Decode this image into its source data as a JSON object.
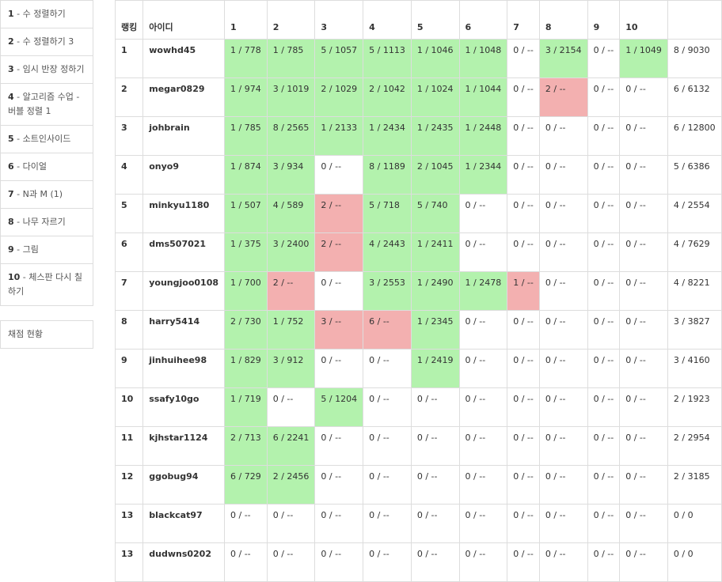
{
  "sidebar": {
    "problems": [
      {
        "num": "1",
        "name": " - 수 정렬하기"
      },
      {
        "num": "2",
        "name": " - 수 정렬하기 3"
      },
      {
        "num": "3",
        "name": " - 임시 반장 정하기"
      },
      {
        "num": "4",
        "name": " - 알고리즘 수업 - 버블 정렬 1"
      },
      {
        "num": "5",
        "name": " - 소트인사이드"
      },
      {
        "num": "6",
        "name": " - 다이얼"
      },
      {
        "num": "7",
        "name": " - N과 M (1)"
      },
      {
        "num": "8",
        "name": " - 나무 자르기"
      },
      {
        "num": "9",
        "name": " - 그림"
      },
      {
        "num": "10",
        "name": " - 체스판 다시 칠하기"
      }
    ],
    "status_label": "채점 현황"
  },
  "table": {
    "header": {
      "rank": "랭킹",
      "id": "아이디",
      "problems": [
        "1",
        "2",
        "3",
        "4",
        "5",
        "6",
        "7",
        "8",
        "9",
        "10"
      ],
      "total": ""
    },
    "rows": [
      {
        "rank": "1",
        "id": "wowhd45",
        "cells": [
          "1 / 778",
          "1 / 785",
          "5 / 1057",
          "5 / 1113",
          "1 / 1046",
          "1 / 1048",
          "0 / --",
          "3 / 2154",
          "0 / --",
          "1 / 1049"
        ],
        "status": [
          "ok",
          "ok",
          "ok",
          "ok",
          "ok",
          "ok",
          "",
          "ok",
          "",
          "ok"
        ],
        "total": "8 / 9030"
      },
      {
        "rank": "2",
        "id": "megar0829",
        "cells": [
          "1 / 974",
          "3 / 1019",
          "2 / 1029",
          "2 / 1042",
          "1 / 1024",
          "1 / 1044",
          "0 / --",
          "2 / --",
          "0 / --",
          "0 / --"
        ],
        "status": [
          "ok",
          "ok",
          "ok",
          "ok",
          "ok",
          "ok",
          "",
          "fail",
          "",
          ""
        ],
        "total": "6 / 6132"
      },
      {
        "rank": "3",
        "id": "johbrain",
        "cells": [
          "1 / 785",
          "8 / 2565",
          "1 / 2133",
          "1 / 2434",
          "1 / 2435",
          "1 / 2448",
          "0 / --",
          "0 / --",
          "0 / --",
          "0 / --"
        ],
        "status": [
          "ok",
          "ok",
          "ok",
          "ok",
          "ok",
          "ok",
          "",
          "",
          "",
          ""
        ],
        "total": "6 / 12800"
      },
      {
        "rank": "4",
        "id": "onyo9",
        "cells": [
          "1 / 874",
          "3 / 934",
          "0 / --",
          "8 / 1189",
          "2 / 1045",
          "1 / 2344",
          "0 / --",
          "0 / --",
          "0 / --",
          "0 / --"
        ],
        "status": [
          "ok",
          "ok",
          "",
          "ok",
          "ok",
          "ok",
          "",
          "",
          "",
          ""
        ],
        "total": "5 / 6386"
      },
      {
        "rank": "5",
        "id": "minkyu1180",
        "cells": [
          "1 / 507",
          "4 / 589",
          "2 / --",
          "5 / 718",
          "5 / 740",
          "0 / --",
          "0 / --",
          "0 / --",
          "0 / --",
          "0 / --"
        ],
        "status": [
          "ok",
          "ok",
          "fail",
          "ok",
          "ok",
          "",
          "",
          "",
          "",
          ""
        ],
        "total": "4 / 2554"
      },
      {
        "rank": "6",
        "id": "dms507021",
        "cells": [
          "1 / 375",
          "3 / 2400",
          "2 / --",
          "4 / 2443",
          "1 / 2411",
          "0 / --",
          "0 / --",
          "0 / --",
          "0 / --",
          "0 / --"
        ],
        "status": [
          "ok",
          "ok",
          "fail",
          "ok",
          "ok",
          "",
          "",
          "",
          "",
          ""
        ],
        "total": "4 / 7629"
      },
      {
        "rank": "7",
        "id": "youngjoo0108",
        "cells": [
          "1 / 700",
          "2 / --",
          "0 / --",
          "3 / 2553",
          "1 / 2490",
          "1 / 2478",
          "1 / --",
          "0 / --",
          "0 / --",
          "0 / --"
        ],
        "status": [
          "ok",
          "fail",
          "",
          "ok",
          "ok",
          "ok",
          "fail",
          "",
          "",
          ""
        ],
        "total": "4 / 8221"
      },
      {
        "rank": "8",
        "id": "harry5414",
        "cells": [
          "2 / 730",
          "1 / 752",
          "3 / --",
          "6 / --",
          "1 / 2345",
          "0 / --",
          "0 / --",
          "0 / --",
          "0 / --",
          "0 / --"
        ],
        "status": [
          "ok",
          "ok",
          "fail",
          "fail",
          "ok",
          "",
          "",
          "",
          "",
          ""
        ],
        "total": "3 / 3827"
      },
      {
        "rank": "9",
        "id": "jinhuihee98",
        "cells": [
          "1 / 829",
          "3 / 912",
          "0 / --",
          "0 / --",
          "1 / 2419",
          "0 / --",
          "0 / --",
          "0 / --",
          "0 / --",
          "0 / --"
        ],
        "status": [
          "ok",
          "ok",
          "",
          "",
          "ok",
          "",
          "",
          "",
          "",
          ""
        ],
        "total": "3 / 4160"
      },
      {
        "rank": "10",
        "id": "ssafy10go",
        "cells": [
          "1 / 719",
          "0 / --",
          "5 / 1204",
          "0 / --",
          "0 / --",
          "0 / --",
          "0 / --",
          "0 / --",
          "0 / --",
          "0 / --"
        ],
        "status": [
          "ok",
          "",
          "ok",
          "",
          "",
          "",
          "",
          "",
          "",
          ""
        ],
        "total": "2 / 1923"
      },
      {
        "rank": "11",
        "id": "kjhstar1124",
        "cells": [
          "2 / 713",
          "6 / 2241",
          "0 / --",
          "0 / --",
          "0 / --",
          "0 / --",
          "0 / --",
          "0 / --",
          "0 / --",
          "0 / --"
        ],
        "status": [
          "ok",
          "ok",
          "",
          "",
          "",
          "",
          "",
          "",
          "",
          ""
        ],
        "total": "2 / 2954"
      },
      {
        "rank": "12",
        "id": "ggobug94",
        "cells": [
          "6 / 729",
          "2 / 2456",
          "0 / --",
          "0 / --",
          "0 / --",
          "0 / --",
          "0 / --",
          "0 / --",
          "0 / --",
          "0 / --"
        ],
        "status": [
          "ok",
          "ok",
          "",
          "",
          "",
          "",
          "",
          "",
          "",
          ""
        ],
        "total": "2 / 3185"
      },
      {
        "rank": "13",
        "id": "blackcat97",
        "cells": [
          "0 / --",
          "0 / --",
          "0 / --",
          "0 / --",
          "0 / --",
          "0 / --",
          "0 / --",
          "0 / --",
          "0 / --",
          "0 / --"
        ],
        "status": [
          "",
          "",
          "",
          "",
          "",
          "",
          "",
          "",
          "",
          ""
        ],
        "total": "0 / 0"
      },
      {
        "rank": "13",
        "id": "dudwns0202",
        "cells": [
          "0 / --",
          "0 / --",
          "0 / --",
          "0 / --",
          "0 / --",
          "0 / --",
          "0 / --",
          "0 / --",
          "0 / --",
          "0 / --"
        ],
        "status": [
          "",
          "",
          "",
          "",
          "",
          "",
          "",
          "",
          "",
          ""
        ],
        "total": "0 / 0"
      }
    ]
  },
  "colors": {
    "accepted": "#b3f2ad",
    "wrong": "#f3b0b0",
    "border": "#dddddd"
  }
}
